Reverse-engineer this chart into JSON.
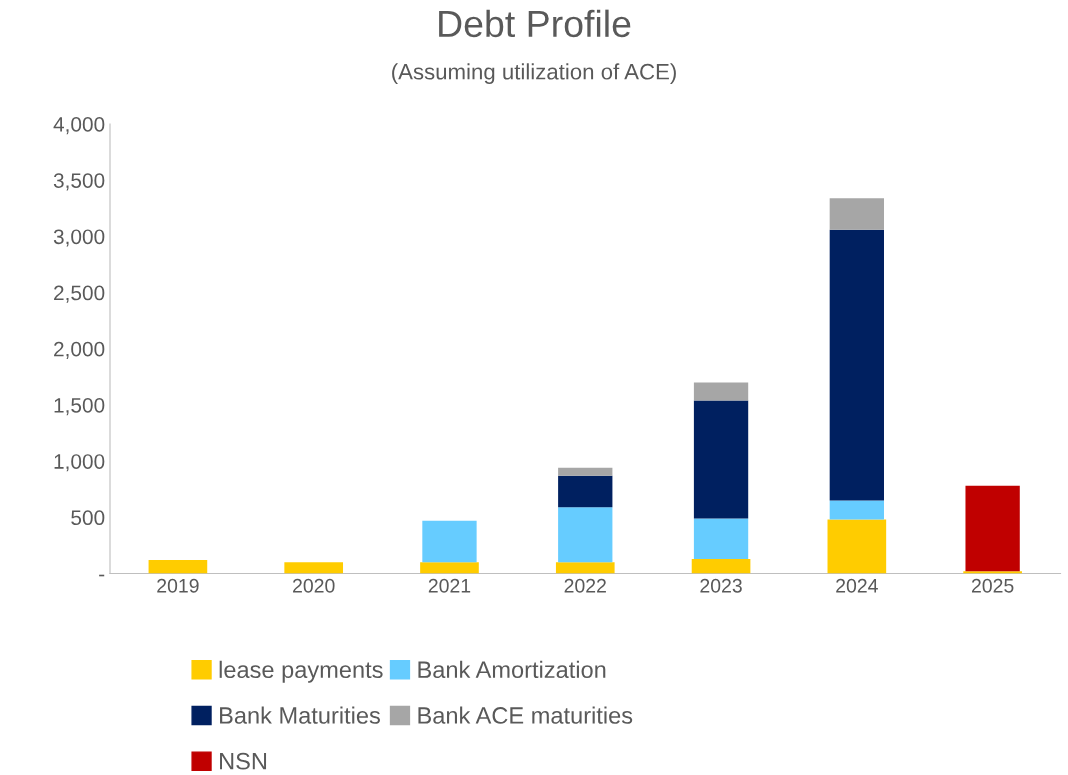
{
  "chart_data": {
    "type": "bar",
    "title": "Debt Profile",
    "subtitle": "(Assuming utilization of ACE)",
    "categories": [
      "2019",
      "2020",
      "2021",
      "2022",
      "2023",
      "2024",
      "2025"
    ],
    "stacked": true,
    "series": [
      {
        "name": "lease payments",
        "color": "#ffcc00",
        "values": [
          120,
          100,
          100,
          100,
          130,
          480,
          20
        ]
      },
      {
        "name": "Bank Amortization",
        "color": "#66ccff",
        "values": [
          null,
          null,
          370,
          490,
          360,
          170,
          null
        ]
      },
      {
        "name": "Bank Maturities",
        "color": "#002060",
        "values": [
          null,
          null,
          null,
          280,
          1050,
          2410,
          null
        ]
      },
      {
        "name": "Bank ACE maturities",
        "color": "#a6a6a6",
        "values": [
          null,
          null,
          null,
          70,
          160,
          280,
          null
        ]
      },
      {
        "name": "NSN",
        "color": "#c00000",
        "values": [
          null,
          null,
          null,
          null,
          null,
          null,
          760
        ]
      }
    ],
    "ylim": [
      0,
      4000
    ],
    "yticks": [
      {
        "value": 0,
        "label": "-"
      },
      {
        "value": 500,
        "label": "500"
      },
      {
        "value": 1000,
        "label": "1,000"
      },
      {
        "value": 1500,
        "label": "1,500"
      },
      {
        "value": 2000,
        "label": "2,000"
      },
      {
        "value": 2500,
        "label": "2,500"
      },
      {
        "value": 3000,
        "label": "3,000"
      },
      {
        "value": 3500,
        "label": "3,500"
      },
      {
        "value": 4000,
        "label": "4,000"
      }
    ],
    "grid": false,
    "legend": "bottom"
  }
}
